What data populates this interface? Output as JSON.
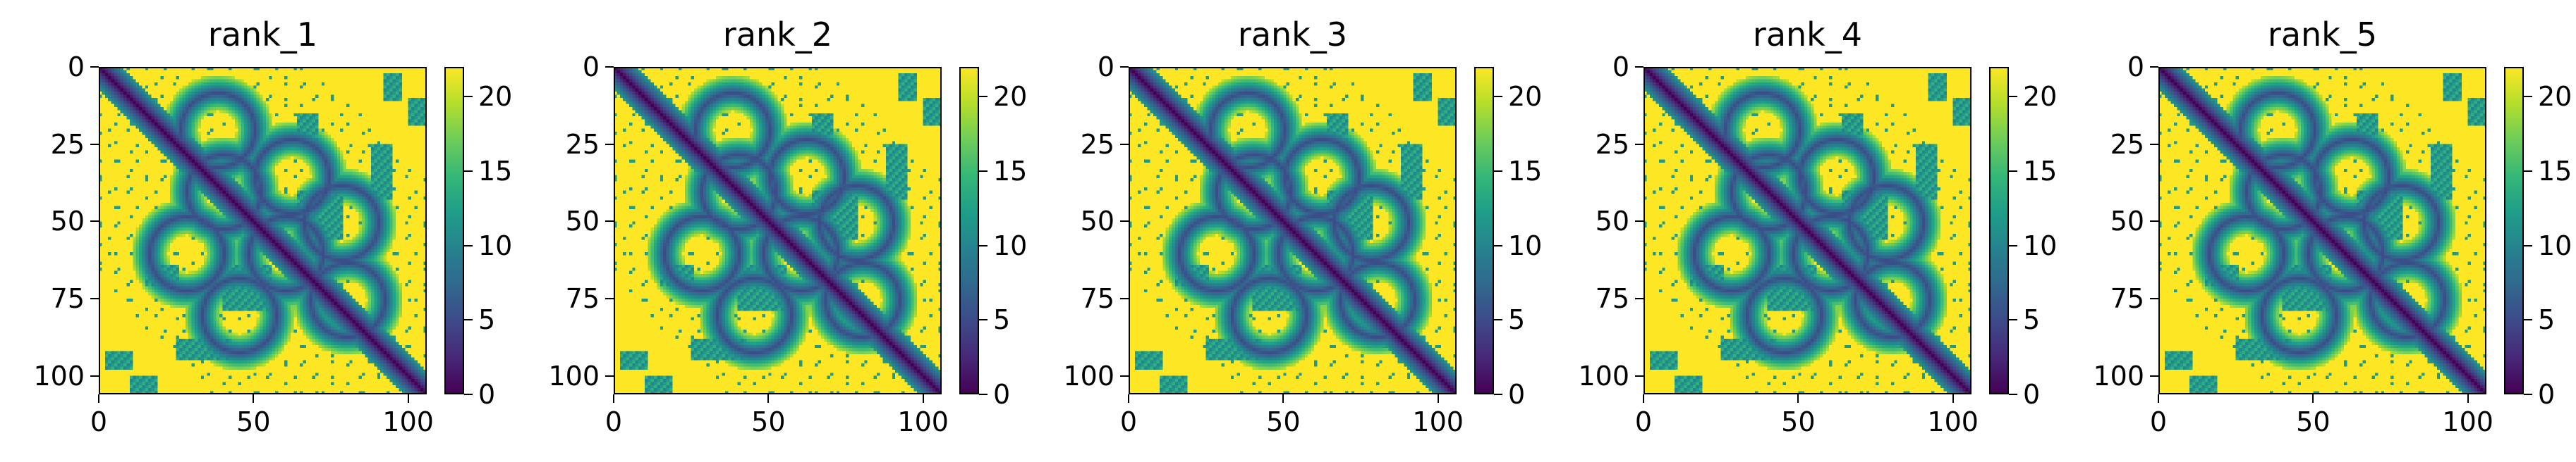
{
  "chart_data": [
    {
      "type": "heatmap",
      "title": "rank_1",
      "xlim": [
        0,
        106
      ],
      "ylim": [
        106,
        0
      ],
      "x_ticks": [
        "0",
        "50",
        "100"
      ],
      "y_ticks": [
        "0",
        "25",
        "50",
        "75",
        "100"
      ],
      "colorbar": {
        "min": 0,
        "max": 22,
        "ticks": [
          "0",
          "5",
          "10",
          "15",
          "20"
        ],
        "colormap": "viridis"
      }
    },
    {
      "type": "heatmap",
      "title": "rank_2",
      "xlim": [
        0,
        106
      ],
      "ylim": [
        106,
        0
      ],
      "x_ticks": [
        "0",
        "50",
        "100"
      ],
      "y_ticks": [
        "0",
        "25",
        "50",
        "75",
        "100"
      ],
      "colorbar": {
        "min": 0,
        "max": 22,
        "ticks": [
          "0",
          "5",
          "10",
          "15",
          "20"
        ],
        "colormap": "viridis"
      }
    },
    {
      "type": "heatmap",
      "title": "rank_3",
      "xlim": [
        0,
        106
      ],
      "ylim": [
        106,
        0
      ],
      "x_ticks": [
        "0",
        "50",
        "100"
      ],
      "y_ticks": [
        "0",
        "25",
        "50",
        "75",
        "100"
      ],
      "colorbar": {
        "min": 0,
        "max": 22,
        "ticks": [
          "0",
          "5",
          "10",
          "15",
          "20"
        ],
        "colormap": "viridis"
      }
    },
    {
      "type": "heatmap",
      "title": "rank_4",
      "xlim": [
        0,
        106
      ],
      "ylim": [
        106,
        0
      ],
      "x_ticks": [
        "0",
        "50",
        "100"
      ],
      "y_ticks": [
        "0",
        "25",
        "50",
        "75",
        "100"
      ],
      "colorbar": {
        "min": 0,
        "max": 22,
        "ticks": [
          "0",
          "5",
          "10",
          "15",
          "20"
        ],
        "colormap": "viridis"
      }
    },
    {
      "type": "heatmap",
      "title": "rank_5",
      "xlim": [
        0,
        106
      ],
      "ylim": [
        106,
        0
      ],
      "x_ticks": [
        "0",
        "50",
        "100"
      ],
      "y_ticks": [
        "0",
        "25",
        "50",
        "75",
        "100"
      ],
      "colorbar": {
        "min": 0,
        "max": 22,
        "ticks": [
          "0",
          "5",
          "10",
          "15",
          "20"
        ],
        "colormap": "viridis"
      }
    }
  ]
}
